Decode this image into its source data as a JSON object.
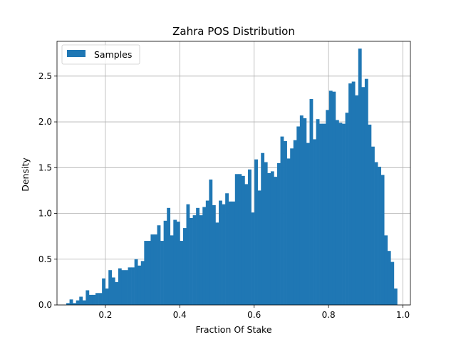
{
  "colors": {
    "bar": "#1f77b4",
    "grid": "#b0b0b0",
    "axis": "#000000"
  },
  "chart_data": {
    "type": "bar",
    "title": "Zahra POS Distribution",
    "xlabel": "Fraction Of Stake",
    "ylabel": "Density",
    "xlim": [
      0.07,
      1.02
    ],
    "ylim": [
      0,
      2.88
    ],
    "grid": true,
    "legend": {
      "entries": [
        "Samples"
      ],
      "placement": "top-left"
    },
    "x_ticks": [
      0.2,
      0.4,
      0.6,
      0.8,
      1.0
    ],
    "x_tick_labels": [
      "0.2",
      "0.4",
      "0.6",
      "0.8",
      "1.0"
    ],
    "y_ticks": [
      0.0,
      0.5,
      1.0,
      1.5,
      2.0,
      2.5
    ],
    "y_tick_labels": [
      "0.0",
      "0.5",
      "1.0",
      "1.5",
      "2.0",
      "2.5"
    ],
    "bin_start": 0.095,
    "bin_width": 0.00872,
    "series": [
      {
        "name": "Samples",
        "values": [
          0.02,
          0.06,
          0.02,
          0.05,
          0.09,
          0.05,
          0.16,
          0.11,
          0.11,
          0.13,
          0.13,
          0.29,
          0.18,
          0.38,
          0.3,
          0.25,
          0.4,
          0.38,
          0.38,
          0.41,
          0.41,
          0.5,
          0.43,
          0.48,
          0.7,
          0.7,
          0.77,
          0.77,
          0.87,
          0.7,
          0.92,
          1.06,
          0.76,
          0.93,
          0.91,
          0.7,
          0.84,
          1.1,
          0.95,
          0.98,
          1.06,
          0.98,
          1.07,
          1.14,
          1.37,
          1.09,
          0.9,
          1.14,
          1.1,
          1.22,
          1.13,
          1.13,
          1.43,
          1.43,
          1.41,
          1.32,
          1.48,
          1.01,
          1.59,
          1.25,
          1.66,
          1.56,
          1.44,
          1.46,
          1.4,
          1.55,
          1.84,
          1.79,
          1.6,
          1.71,
          1.8,
          1.95,
          2.07,
          2.04,
          1.77,
          2.25,
          1.81,
          2.03,
          1.98,
          1.98,
          2.13,
          2.34,
          2.33,
          2.02,
          1.99,
          1.98,
          2.1,
          2.42,
          2.44,
          2.29,
          2.8,
          2.38,
          2.47,
          1.97,
          1.73,
          1.56,
          1.51,
          1.42,
          0.76,
          0.59,
          0.47,
          0.18
        ]
      }
    ]
  }
}
